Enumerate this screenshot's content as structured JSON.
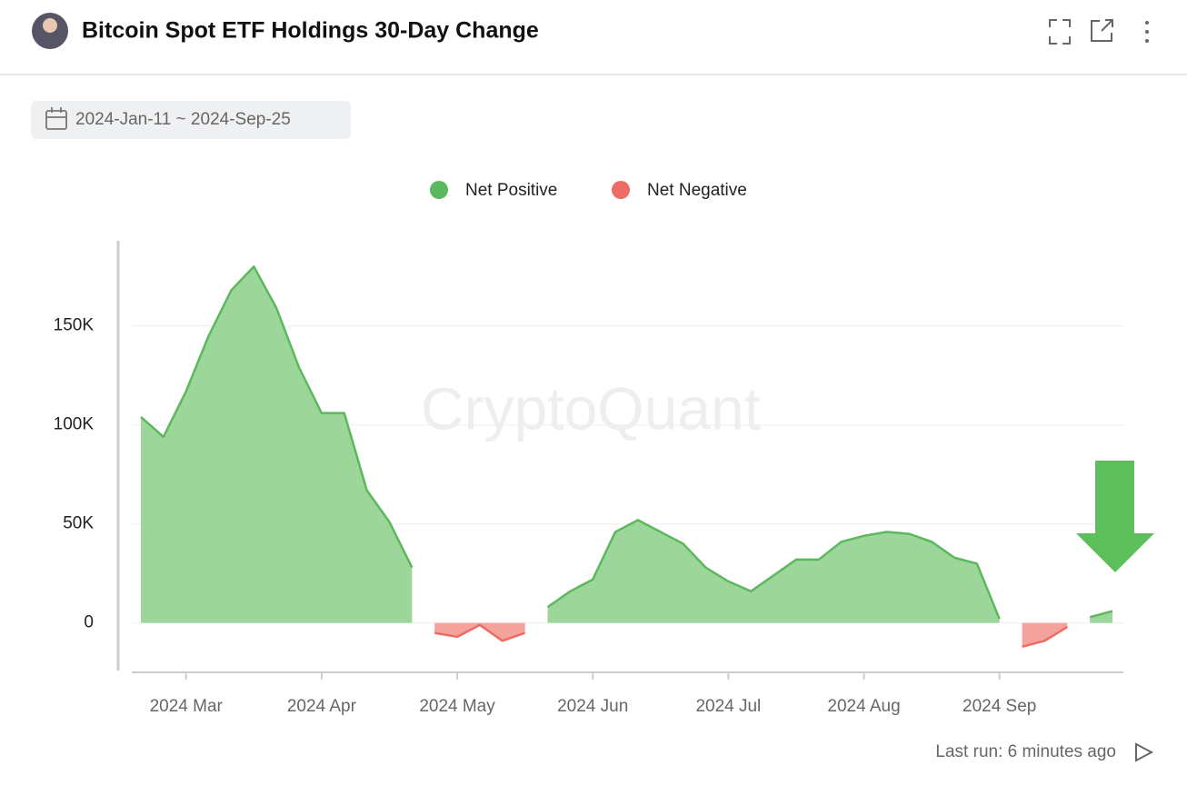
{
  "header": {
    "title": "Bitcoin Spot ETF Holdings 30-Day Change"
  },
  "date_range": "2024-Jan-11 ~ 2024-Sep-25",
  "footer": {
    "last_run": "Last run: 6 minutes ago"
  },
  "chart_data": {
    "type": "area",
    "watermark": "CryptoQuant",
    "categories": [
      null,
      null,
      "2024 Mar",
      null,
      null,
      null,
      null,
      null,
      "2024 Apr",
      null,
      null,
      null,
      null,
      null,
      "2024 May",
      null,
      null,
      null,
      null,
      null,
      "2024 Jun",
      null,
      null,
      null,
      null,
      null,
      "2024 Jul",
      null,
      null,
      null,
      null,
      null,
      "2024 Aug",
      null,
      null,
      null,
      null,
      null,
      "2024 Sep",
      null,
      null,
      null,
      null,
      null
    ],
    "series": [
      {
        "name": "Net Positive",
        "color": "#5cb85c",
        "fill": "#9dd69a",
        "values": [
          104000,
          94000,
          117000,
          145000,
          168000,
          180000,
          159000,
          129000,
          106000,
          106000,
          67000,
          51000,
          28000,
          null,
          null,
          null,
          null,
          null,
          8000,
          16000,
          22000,
          46000,
          52000,
          46000,
          40000,
          28000,
          21000,
          16000,
          24000,
          32000,
          32000,
          41000,
          44000,
          46000,
          45000,
          41000,
          33000,
          30000,
          2000,
          null,
          null,
          null,
          3000,
          6000
        ]
      },
      {
        "name": "Net Negative",
        "color": "#ec6b65",
        "fill": "#f5a29d",
        "values": [
          null,
          null,
          null,
          null,
          null,
          null,
          null,
          null,
          null,
          null,
          null,
          null,
          null,
          -5000,
          -7000,
          -1000,
          -9000,
          -5000,
          null,
          null,
          null,
          null,
          null,
          null,
          null,
          null,
          null,
          null,
          null,
          null,
          null,
          null,
          null,
          null,
          null,
          null,
          null,
          null,
          null,
          -12000,
          -9000,
          -2000,
          null,
          null
        ]
      }
    ],
    "ylim": [
      -24000,
      193000
    ],
    "yticks": [
      {
        "value": 0,
        "label": "0"
      },
      {
        "value": 50000,
        "label": "50K"
      },
      {
        "value": 100000,
        "label": "100K"
      },
      {
        "value": 150000,
        "label": "150K"
      }
    ],
    "grid": true
  }
}
